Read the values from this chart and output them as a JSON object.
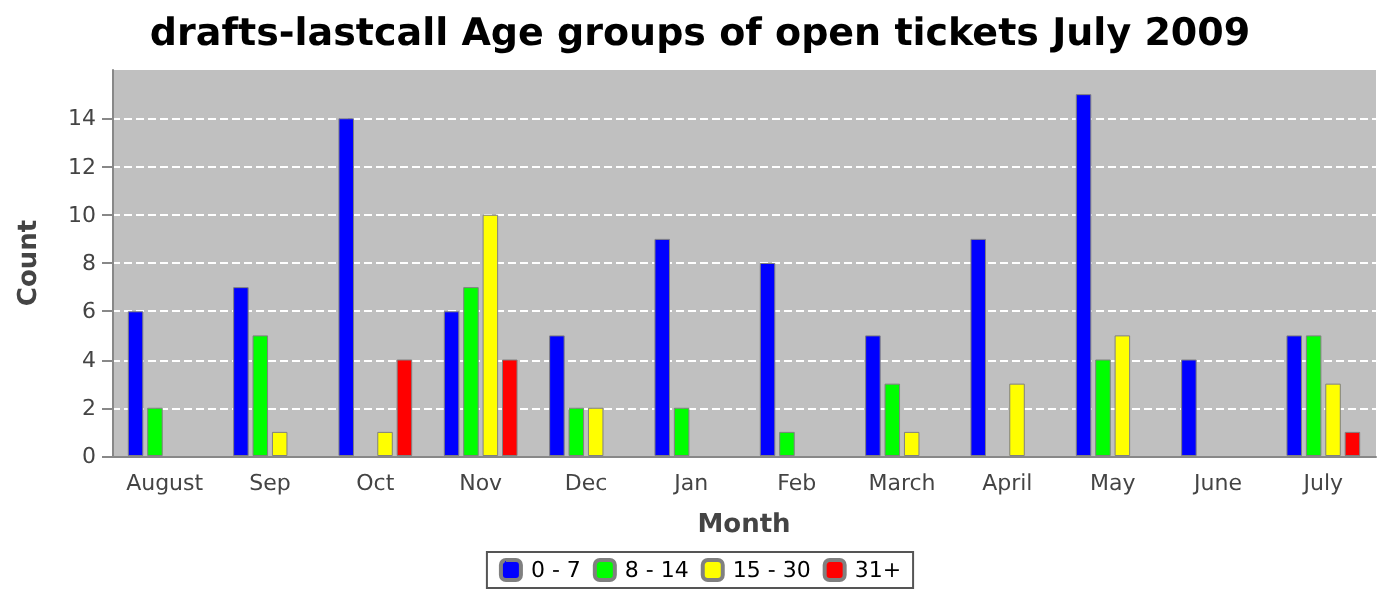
{
  "chart_data": {
    "type": "bar",
    "title": "drafts-lastcall Age groups of open tickets July 2009",
    "xlabel": "Month",
    "ylabel": "Count",
    "categories": [
      "August",
      "Sep",
      "Oct",
      "Nov",
      "Dec",
      "Jan",
      "Feb",
      "March",
      "April",
      "May",
      "June",
      "July"
    ],
    "series": [
      {
        "name": "0 - 7",
        "color": "#0000ff",
        "values": [
          6,
          7,
          14,
          6,
          5,
          9,
          8,
          5,
          9,
          15,
          4,
          5
        ]
      },
      {
        "name": "8 - 14",
        "color": "#00ff00",
        "values": [
          2,
          5,
          null,
          7,
          2,
          2,
          1,
          3,
          null,
          4,
          null,
          5
        ]
      },
      {
        "name": "15 - 30",
        "color": "#ffff00",
        "values": [
          null,
          1,
          1,
          10,
          2,
          null,
          null,
          1,
          3,
          5,
          null,
          3
        ]
      },
      {
        "name": "31+",
        "color": "#ff0000",
        "values": [
          null,
          null,
          4,
          4,
          null,
          null,
          null,
          null,
          null,
          null,
          null,
          1
        ]
      }
    ],
    "ylim": [
      0,
      16
    ],
    "yticks": [
      0,
      2,
      4,
      6,
      8,
      10,
      12,
      14
    ],
    "grid": "y",
    "legend": "bottom"
  }
}
